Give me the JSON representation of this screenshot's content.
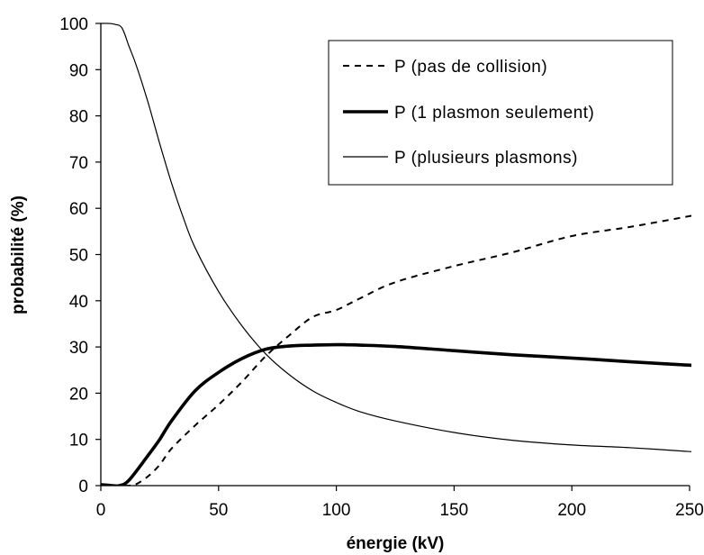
{
  "chart_data": {
    "type": "line",
    "xlabel": "énergie (kV)",
    "ylabel": "probabilité (%)",
    "xlim": [
      0,
      250
    ],
    "ylim": [
      0,
      100
    ],
    "xticks": [
      "0",
      "50",
      "100",
      "150",
      "200",
      "250"
    ],
    "yticks": [
      "0",
      "10",
      "20",
      "30",
      "40",
      "50",
      "60",
      "70",
      "80",
      "90",
      "100"
    ],
    "grid": false,
    "legend_position": "top-right",
    "series": [
      {
        "name": "P (pas de collision)",
        "style": "dashed",
        "color": "#000000",
        "x": [
          0,
          8,
          12,
          15,
          20,
          25,
          30,
          40,
          50,
          60,
          70,
          80,
          90,
          100,
          110,
          125,
          150,
          175,
          200,
          225,
          252
        ],
        "y": [
          0,
          0,
          0,
          0.3,
          2,
          4.5,
          8,
          13,
          17.5,
          22.5,
          28,
          32.5,
          36.5,
          38,
          40.5,
          44,
          47.5,
          50.5,
          54,
          56,
          58.5
        ]
      },
      {
        "name": "P (1 plasmon seulement)",
        "style": "thick",
        "color": "#000000",
        "x": [
          0,
          5,
          8,
          12,
          20,
          25,
          30,
          40,
          50,
          60,
          70,
          80,
          90,
          100,
          110,
          125,
          150,
          175,
          200,
          225,
          252
        ],
        "y": [
          0.2,
          0,
          0,
          1.2,
          6.5,
          10,
          14,
          20.5,
          24.5,
          27.5,
          29.5,
          30.2,
          30.4,
          30.5,
          30.4,
          30.1,
          29.2,
          28.3,
          27.6,
          26.8,
          26
        ]
      },
      {
        "name": "P (plusieurs plasmons)",
        "style": "thin",
        "color": "#000000",
        "x": [
          0,
          3,
          6,
          9,
          12,
          15,
          20,
          25,
          30,
          35,
          40,
          50,
          60,
          70,
          80,
          90,
          100,
          110,
          125,
          150,
          175,
          200,
          225,
          252
        ],
        "y": [
          100,
          100,
          99.8,
          99,
          95,
          91,
          83,
          74,
          65.5,
          58,
          51.5,
          42,
          34.5,
          28.5,
          24,
          20.5,
          18,
          16,
          14,
          11.5,
          9.8,
          8.8,
          8.2,
          7.3
        ]
      }
    ]
  }
}
